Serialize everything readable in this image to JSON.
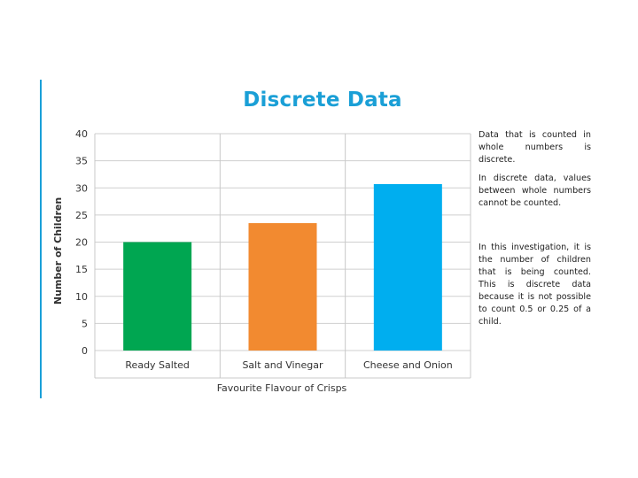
{
  "page": {
    "title": "Discrete Data",
    "notes": [
      "Data that is counted in whole numbers is discrete.",
      "In discrete data, values between whole numbers cannot be counted.",
      "In this investigation, it is the number of children that is being counted. This is discrete data because it is not possible to count 0.5 or 0.25 of a child."
    ],
    "colors": {
      "accent": "#1a9fd6"
    }
  },
  "chart_data": {
    "type": "bar",
    "title": "",
    "xlabel": "Favourite Flavour of Crisps",
    "ylabel": "Number of Children",
    "categories": [
      "Ready Salted",
      "Salt and Vinegar",
      "Cheese and Onion"
    ],
    "values": [
      20,
      23.5,
      30.7
    ],
    "colors": [
      "#00a651",
      "#f28a30",
      "#00aeef"
    ],
    "ylim": [
      0,
      40
    ],
    "yticks": [
      0,
      5,
      10,
      15,
      20,
      25,
      30,
      35,
      40
    ],
    "grid": true,
    "legend": "none"
  }
}
